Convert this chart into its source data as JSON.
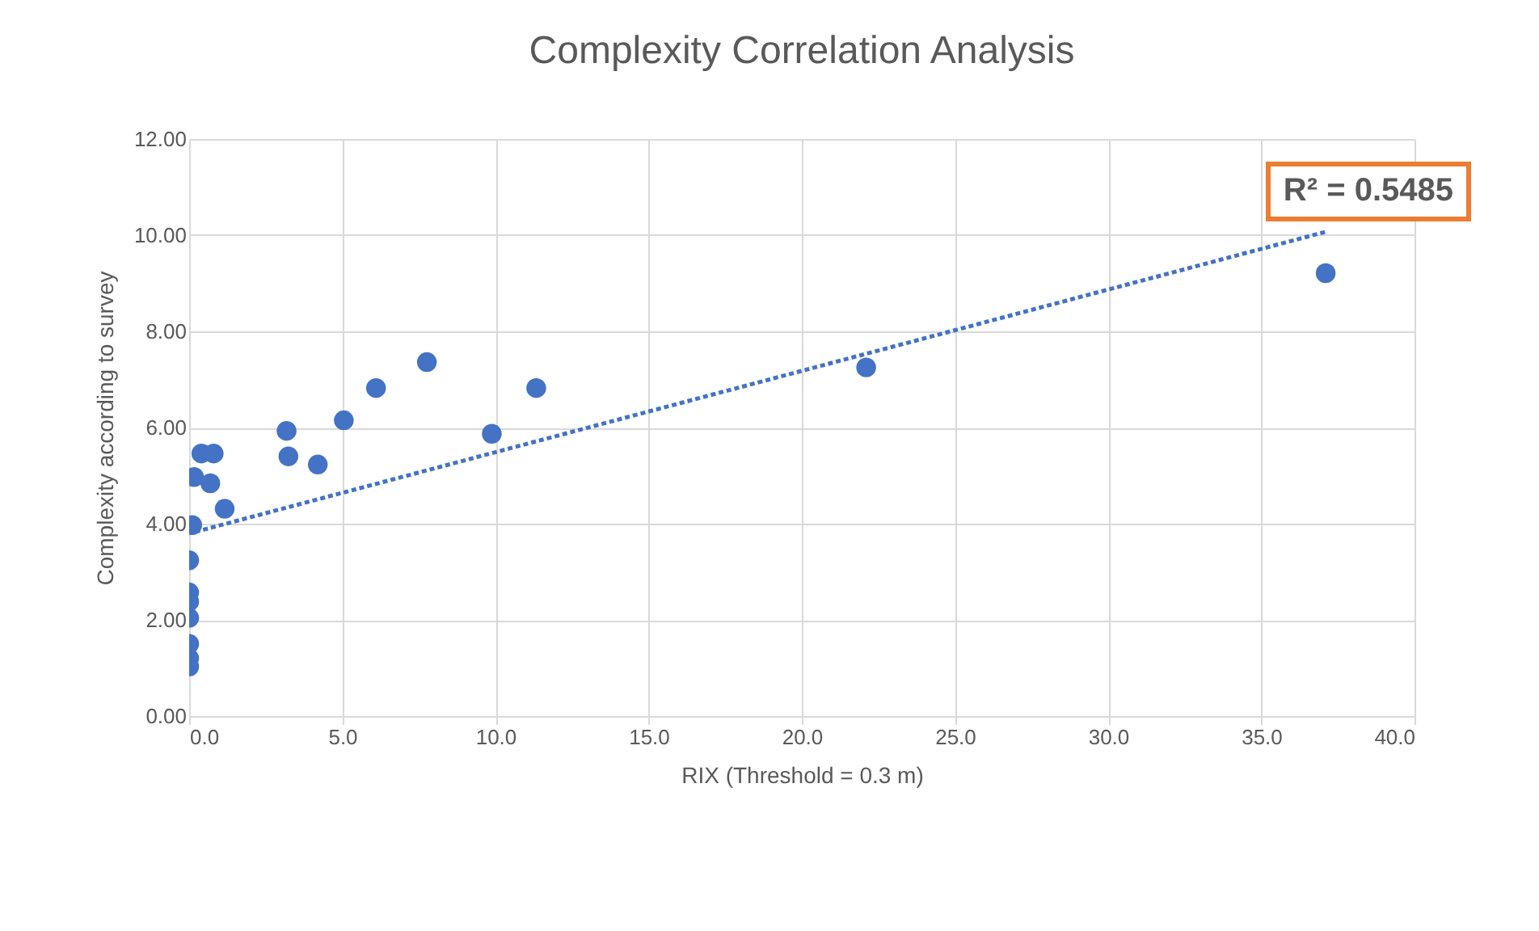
{
  "chart_data": {
    "type": "scatter",
    "title": "Complexity Correlation Analysis",
    "xlabel": "RIX (Threshold = 0.3 m)",
    "ylabel": "Complexity according to survey",
    "xlim": [
      0,
      40
    ],
    "ylim": [
      0,
      12
    ],
    "xticks": [
      {
        "value": 0,
        "label": "0.0"
      },
      {
        "value": 5,
        "label": "5.0"
      },
      {
        "value": 10,
        "label": "10.0"
      },
      {
        "value": 15,
        "label": "15.0"
      },
      {
        "value": 20,
        "label": "20.0"
      },
      {
        "value": 25,
        "label": "25.0"
      },
      {
        "value": 30,
        "label": "30.0"
      },
      {
        "value": 35,
        "label": "35.0"
      },
      {
        "value": 40,
        "label": "40.0"
      }
    ],
    "yticks": [
      {
        "value": 0,
        "label": "0.00"
      },
      {
        "value": 2,
        "label": "2.00"
      },
      {
        "value": 4,
        "label": "4.00"
      },
      {
        "value": 6,
        "label": "6.00"
      },
      {
        "value": 8,
        "label": "8.00"
      },
      {
        "value": 10,
        "label": "10.00"
      },
      {
        "value": 12,
        "label": "12.00"
      }
    ],
    "grid": true,
    "marker": "circle",
    "series": [
      {
        "color": "#4472c4",
        "x": [
          0,
          0,
          0,
          0,
          0,
          0,
          0,
          0.1,
          0.16,
          0.4,
          0.8,
          0.69,
          1.16,
          3.18,
          3.24,
          4.2,
          5.05,
          6.1,
          7.76,
          9.88,
          11.33,
          22.1,
          37.1
        ],
        "values": [
          1.03,
          1.2,
          1.5,
          2.04,
          2.38,
          2.57,
          3.24,
          3.97,
          4.97,
          5.46,
          5.46,
          4.84,
          4.31,
          5.93,
          5.4,
          5.23,
          6.15,
          6.82,
          7.36,
          5.87,
          6.82,
          7.25,
          9.21
        ]
      },
      {
        "type": "line",
        "color": "#4472c4",
        "line_style": "dotted",
        "marker": "none",
        "x": [
          0.2,
          37.1
        ],
        "values": [
          3.83,
          10.07
        ]
      }
    ],
    "annotations": [
      "R² = 0.5485"
    ]
  }
}
